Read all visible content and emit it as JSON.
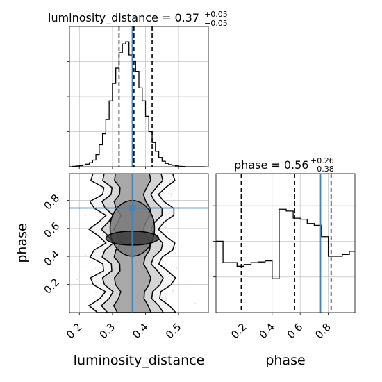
{
  "chart_data": {
    "type": "corner",
    "parameters": [
      "luminosity_distance",
      "phase"
    ],
    "truths": {
      "luminosity_distance": 0.36,
      "phase": 0.745
    },
    "panels": [
      {
        "id": "hist-luminosity_distance",
        "type": "histogram",
        "title": {
          "main": "luminosity_distance = 0.37",
          "sup": "+0.05",
          "sub": "−0.05"
        },
        "xlim": [
          0.17,
          0.59
        ],
        "median": 0.365,
        "quantile_lines": [
          0.32,
          0.42
        ],
        "bin_edges": [
          0.17,
          0.18,
          0.19,
          0.2,
          0.21,
          0.22,
          0.23,
          0.24,
          0.25,
          0.26,
          0.27,
          0.28,
          0.29,
          0.3,
          0.31,
          0.32,
          0.33,
          0.34,
          0.35,
          0.36,
          0.37,
          0.38,
          0.39,
          0.4,
          0.41,
          0.42,
          0.43,
          0.44,
          0.45,
          0.46,
          0.47,
          0.48,
          0.49,
          0.5,
          0.51,
          0.52,
          0.53,
          0.54,
          0.55,
          0.56,
          0.57,
          0.58
        ],
        "counts": [
          0,
          2,
          3,
          5,
          8,
          12,
          18,
          30,
          55,
          100,
          150,
          215,
          300,
          380,
          450,
          520,
          560,
          570,
          510,
          480,
          435,
          360,
          300,
          230,
          160,
          110,
          70,
          42,
          25,
          15,
          10,
          7,
          4,
          2,
          1,
          0,
          0,
          0,
          0,
          0,
          0
        ],
        "ymax": 640,
        "xticks": [
          "0.2",
          "0.3",
          "0.4",
          "0.5"
        ],
        "xtick_values": [
          0.2,
          0.3,
          0.4,
          0.5
        ]
      },
      {
        "id": "hist-phase",
        "type": "histogram",
        "title": {
          "main": "phase = 0.56",
          "sup": "+0.26",
          "sub": "−0.38"
        },
        "xlim": [
          0.0,
          0.99
        ],
        "median": 0.56,
        "quantile_lines": [
          0.18,
          0.82
        ],
        "bin_edges": [
          0.0,
          0.05,
          0.1,
          0.15,
          0.2,
          0.25,
          0.3,
          0.35,
          0.4,
          0.45,
          0.5,
          0.55,
          0.6,
          0.65,
          0.7,
          0.75,
          0.8,
          0.85,
          0.9,
          0.95,
          1.0
        ],
        "counts": [
          200,
          140,
          140,
          130,
          135,
          140,
          142,
          145,
          95,
          290,
          285,
          265,
          262,
          250,
          245,
          213,
          158,
          158,
          163,
          172
        ],
        "ymax": 390,
        "xticks": [
          "0.2",
          "0.4",
          "0.6",
          "0.8"
        ],
        "xtick_values": [
          0.2,
          0.4,
          0.6,
          0.8
        ]
      },
      {
        "id": "joint-luminosity_distance-phase",
        "type": "contour",
        "xlim": [
          0.17,
          0.59
        ],
        "ylim": [
          0.0,
          0.99
        ],
        "center": [
          0.36,
          0.535
        ],
        "xticks": [
          "0.2",
          "0.3",
          "0.4",
          "0.5"
        ],
        "xtick_values": [
          0.2,
          0.3,
          0.4,
          0.5
        ],
        "yticks": [
          "0.2",
          "0.4",
          "0.6",
          "0.8"
        ],
        "ytick_values": [
          0.2,
          0.4,
          0.6,
          0.8
        ]
      }
    ],
    "xlabels": [
      "luminosity_distance",
      "phase"
    ],
    "ylabel": "phase"
  }
}
